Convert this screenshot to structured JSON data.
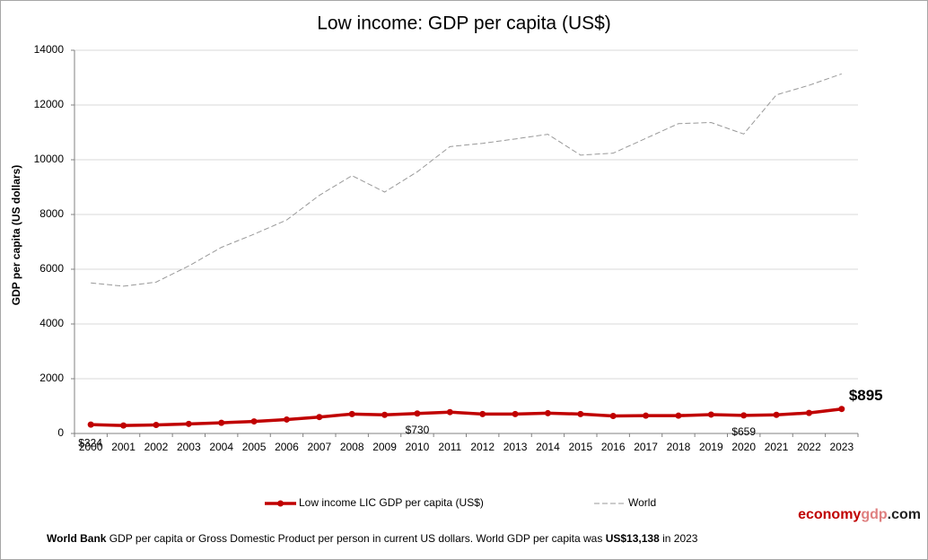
{
  "chart_data": {
    "type": "line",
    "title": "Low income: GDP per capita (US$)",
    "y_axis_label": "GDP per capita (US dollars)",
    "categories": [
      "2000",
      "2001",
      "2002",
      "2003",
      "2004",
      "2005",
      "2006",
      "2007",
      "2008",
      "2009",
      "2010",
      "2011",
      "2012",
      "2013",
      "2014",
      "2015",
      "2016",
      "2017",
      "2018",
      "2019",
      "2020",
      "2021",
      "2022",
      "2023"
    ],
    "series": [
      {
        "name": "Low income LIC GDP per capita (US$)",
        "color": "#c00000",
        "values": [
          324,
          290,
          310,
          350,
          390,
          440,
          510,
          600,
          710,
          680,
          730,
          780,
          710,
          710,
          740,
          710,
          640,
          650,
          650,
          690,
          659,
          680,
          750,
          895
        ],
        "value_labels": [
          "$324",
          null,
          null,
          null,
          null,
          null,
          null,
          null,
          null,
          null,
          "$730",
          null,
          null,
          null,
          null,
          null,
          null,
          null,
          null,
          null,
          "$659",
          null,
          null,
          "$895"
        ]
      },
      {
        "name": "World",
        "color": "#999999",
        "dashed": true,
        "values": [
          5500,
          5380,
          5530,
          6120,
          6800,
          7280,
          7800,
          8700,
          9420,
          8820,
          9560,
          10480,
          10600,
          10760,
          10930,
          10170,
          10240,
          10780,
          11320,
          11360,
          10940,
          12370,
          12720,
          13138
        ]
      }
    ],
    "ylim": [
      0,
      14000
    ],
    "yticks": [
      0,
      2000,
      4000,
      6000,
      8000,
      10000,
      12000,
      14000
    ],
    "grid": true,
    "legend": "bottom",
    "brand": [
      "economy",
      "gdp",
      ".com"
    ],
    "footer": [
      "World Bank",
      "GDP per capita or Gross Domestic Product per person in current US dollars.   World GDP per capita was",
      "US$13,138",
      "in 2023"
    ]
  }
}
